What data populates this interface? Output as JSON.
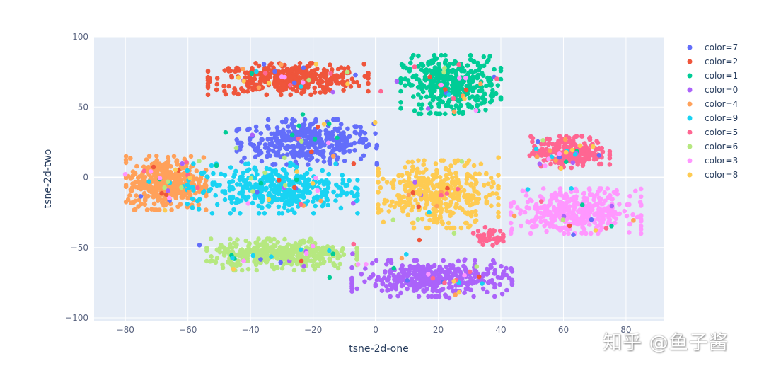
{
  "watermark": "知乎 @鱼子酱",
  "chart_data": {
    "type": "scatter",
    "xlabel": "tsne-2d-one",
    "ylabel": "tsne-2d-two",
    "xlim": [
      -90,
      92
    ],
    "ylim": [
      -102,
      100
    ],
    "xticks": [
      -80,
      -60,
      -40,
      -20,
      0,
      20,
      40,
      60,
      80
    ],
    "yticks": [
      -100,
      -50,
      0,
      50,
      100
    ],
    "grid": true,
    "plot_bgcolor": "#e5ecf6",
    "legend_position": "right",
    "series": [
      {
        "name": "color=7",
        "color": "#636efa",
        "clusters": [
          {
            "cx": -22,
            "cy": 25,
            "sx": 14,
            "sy": 10,
            "n": 380
          }
        ]
      },
      {
        "name": "color=2",
        "color": "#ef553b",
        "clusters": [
          {
            "cx": -28,
            "cy": 70,
            "sx": 16,
            "sy": 7,
            "n": 380
          }
        ]
      },
      {
        "name": "color=1",
        "color": "#00cc96",
        "clusters": [
          {
            "cx": 24,
            "cy": 66,
            "sx": 10,
            "sy": 13,
            "n": 380
          }
        ]
      },
      {
        "name": "color=0",
        "color": "#ab63fa",
        "clusters": [
          {
            "cx": 18,
            "cy": -72,
            "sx": 16,
            "sy": 8,
            "n": 380
          }
        ]
      },
      {
        "name": "color=4",
        "color": "#ffa15a",
        "clusters": [
          {
            "cx": -67,
            "cy": -4,
            "sx": 8,
            "sy": 12,
            "n": 380
          }
        ]
      },
      {
        "name": "color=9",
        "color": "#19d3f3",
        "clusters": [
          {
            "cx": -33,
            "cy": -8,
            "sx": 17,
            "sy": 11,
            "n": 380
          }
        ]
      },
      {
        "name": "color=5",
        "color": "#ff6692",
        "clusters": [
          {
            "cx": 62,
            "cy": 18,
            "sx": 8,
            "sy": 7,
            "n": 240
          },
          {
            "cx": 36,
            "cy": -42,
            "sx": 3,
            "sy": 4,
            "n": 40
          }
        ]
      },
      {
        "name": "color=6",
        "color": "#b6e880",
        "clusters": [
          {
            "cx": -30,
            "cy": -55,
            "sx": 15,
            "sy": 7,
            "n": 380
          }
        ]
      },
      {
        "name": "color=3",
        "color": "#ff97ff",
        "clusters": [
          {
            "cx": 64,
            "cy": -24,
            "sx": 13,
            "sy": 10,
            "n": 380
          }
        ]
      },
      {
        "name": "color=8",
        "color": "#fecb52",
        "clusters": [
          {
            "cx": 20,
            "cy": -12,
            "sx": 12,
            "sy": 15,
            "n": 380
          }
        ]
      }
    ]
  }
}
